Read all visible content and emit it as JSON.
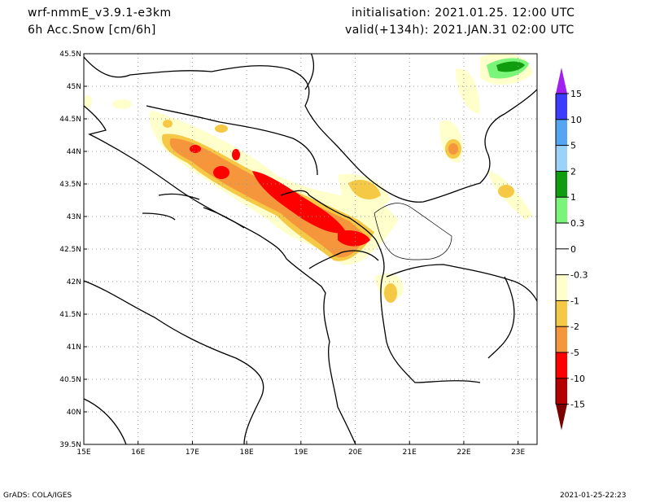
{
  "header": {
    "model": "wrf-nmmE_v3.9.1-e3km",
    "variable": "6h Acc.Snow [cm/6h]",
    "initialisation": "initialisation: 2021.01.25.  12:00 UTC",
    "valid": "valid(+134h): 2021.JAN.31 02:00 UTC"
  },
  "axes": {
    "lon_labels": [
      "15E",
      "16E",
      "17E",
      "18E",
      "19E",
      "20E",
      "21E",
      "22E",
      "23E"
    ],
    "lon_values": [
      15,
      16,
      17,
      18,
      19,
      20,
      21,
      22,
      23
    ],
    "lat_labels": [
      "45.5N",
      "45N",
      "44.5N",
      "44N",
      "43.5N",
      "43N",
      "42.5N",
      "42N",
      "41.5N",
      "41N",
      "40.5N",
      "40N",
      "39.5N"
    ],
    "lat_values": [
      45.5,
      45,
      44.5,
      44,
      43.5,
      43,
      42.5,
      42,
      41.5,
      41,
      40.5,
      40,
      39.5
    ],
    "lon_range": [
      15,
      23.35
    ],
    "lat_range": [
      39.5,
      45.5
    ]
  },
  "colorbar": {
    "labels": [
      "15",
      "10",
      "5",
      "2",
      "1",
      "0.3",
      "0",
      "-0.3",
      "-1",
      "-2",
      "-5",
      "-10",
      "-15"
    ],
    "top_arrow_color": "#a020f0",
    "bottom_arrow_color": "#7a0000",
    "segment_colors": [
      "#3c3cff",
      "#55a5f5",
      "#9bd2fa",
      "#0f9d0f",
      "#7af57a",
      "#ffffff",
      "#ffffff",
      "#ffffcc",
      "#f5c846",
      "#f5963c",
      "#ff0000",
      "#b40000"
    ]
  },
  "footer": {
    "left": "GrADS: COLA/IGES",
    "right": "2021-01-25-22:23"
  }
}
